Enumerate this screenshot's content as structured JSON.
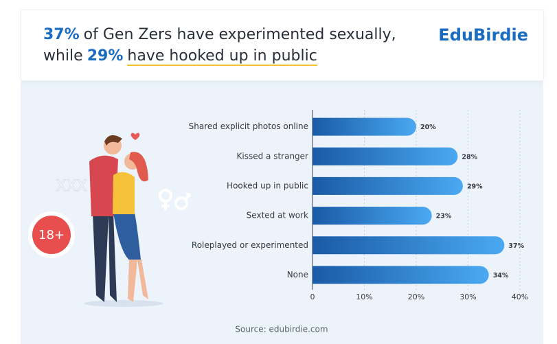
{
  "chart_data": {
    "type": "hbar",
    "title": [
      "37%",
      "of Gen Zers have experimented sexually,",
      "while",
      "29%",
      "have hooked up in public"
    ],
    "brand": "EduBirdie",
    "badge": "18+",
    "decoration": "XXX",
    "source": "Source: edubirdie.com",
    "categories": [
      "Shared explicit photos online",
      "Kissed a stranger",
      "Hooked up in public",
      "Sexted at work",
      "Roleplayed or experimented",
      "None"
    ],
    "values": [
      20,
      28,
      29,
      23,
      37,
      34
    ],
    "value_labels": [
      "20%",
      "28%",
      "29%",
      "23%",
      "37%",
      "34%"
    ],
    "colors": [
      "#1a5aa6",
      "#4aa9f2"
    ],
    "xlim": [
      0,
      40
    ],
    "xticks": [
      0,
      {
        "value": 10,
        "label": "10%"
      },
      {
        "value": 20,
        "label": "20%"
      },
      {
        "value": 30,
        "label": "30%"
      },
      {
        "value": 40,
        "label": "40%"
      }
    ],
    "grid": true
  }
}
